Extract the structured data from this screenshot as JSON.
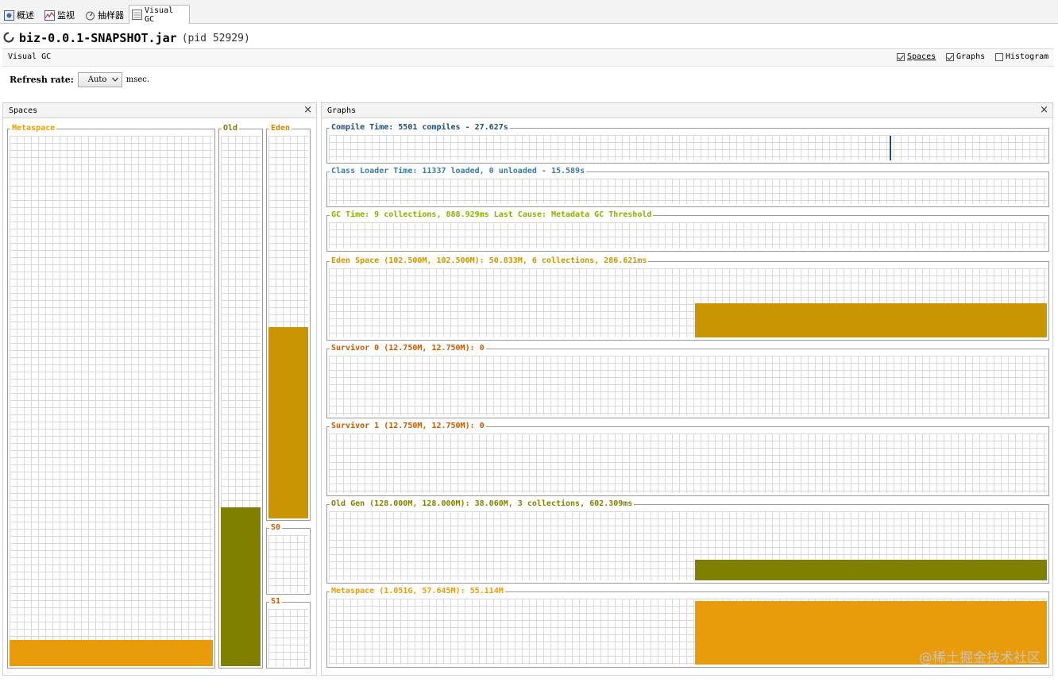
{
  "tabs": [
    {
      "label": "概述",
      "icon": "overview-icon"
    },
    {
      "label": "监视",
      "icon": "monitor-icon"
    },
    {
      "label": "抽样器",
      "icon": "sampler-icon"
    },
    {
      "label": "Visual GC",
      "icon": "visual-gc-icon",
      "active": true
    }
  ],
  "app": {
    "name": "biz-0.0.1-SNAPSHOT.jar",
    "pid": "(pid 52929)"
  },
  "view": {
    "label": "Visual GC",
    "options": [
      {
        "label": "Spaces",
        "checked": true
      },
      {
        "label": "Graphs",
        "checked": true
      },
      {
        "label": "Histogram",
        "checked": false
      }
    ]
  },
  "refresh": {
    "label": "Refresh rate:",
    "value": "Auto",
    "unit": "msec."
  },
  "spaces_panel": {
    "title": "Spaces",
    "close": "×",
    "spaces": [
      {
        "key": "metaspace",
        "label": "Metaspace",
        "fill_fraction": 0.05,
        "color": "#e89c0c",
        "label_color": "#e8a000"
      },
      {
        "key": "old",
        "label": "Old",
        "fill_fraction": 0.3,
        "color": "#808000",
        "label_color": "#7a7a00"
      },
      {
        "key": "eden",
        "label": "Eden",
        "fill_fraction": 0.5,
        "color": "#c99500",
        "label_color": "#c98a00"
      },
      {
        "key": "s0",
        "label": "S0",
        "fill_fraction": 0,
        "color": "#c85a00",
        "label_color": "#c85a00"
      },
      {
        "key": "s1",
        "label": "S1",
        "fill_fraction": 0,
        "color": "#c85a00",
        "label_color": "#c85a00"
      }
    ]
  },
  "graphs_panel": {
    "title": "Graphs",
    "close": "×",
    "graphs": [
      {
        "key": "compile",
        "label": "Compile Time: 5501 compiles - 27.627s",
        "color": "#1f4e6e"
      },
      {
        "key": "classloader",
        "label": "Class Loader Time: 11337 loaded, 0 unloaded - 15.589s",
        "color": "#3a7aa0"
      },
      {
        "key": "gc",
        "label": "GC Time: 9 collections, 888.929ms Last Cause: Metadata GC Threshold",
        "color": "#8ab000"
      },
      {
        "key": "eden",
        "label": "Eden Space (102.500M, 102.500M): 50.833M, 6 collections, 286.621ms",
        "color": "#c99500",
        "fill_fraction": 0.5
      },
      {
        "key": "survivor0",
        "label": "Survivor 0 (12.750M, 12.750M): 0",
        "color": "#c85a00",
        "fill_fraction": 0
      },
      {
        "key": "survivor1",
        "label": "Survivor 1 (12.750M, 12.750M): 0",
        "color": "#c85a00",
        "fill_fraction": 0
      },
      {
        "key": "oldgen",
        "label": "Old Gen (128.000M, 128.000M): 38.060M, 3 collections, 602.309ms",
        "color": "#808000",
        "fill_fraction": 0.3
      },
      {
        "key": "metaspace",
        "label": "Metaspace (1.051G, 57.645M): 55.114M",
        "color": "#e89c0c",
        "fill_fraction": 0.96
      }
    ]
  },
  "watermark": "@稀土掘金技术社区"
}
